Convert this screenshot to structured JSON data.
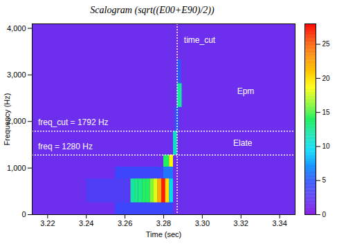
{
  "chart_data": {
    "type": "heatmap",
    "title": "Scalogram (sqrt((E00+E90)/2))",
    "x_label": "Time (sec)",
    "y_label": "Frequency (Hz)",
    "xlim": [
      3.212,
      3.348
    ],
    "xticks": [
      3.22,
      3.24,
      3.26,
      3.28,
      3.3,
      3.32,
      3.34
    ],
    "ylim": [
      0,
      4096
    ],
    "yticks": [
      0,
      1000,
      2000,
      3000,
      4000
    ],
    "cells": [
      {
        "time": [
          3.212,
          3.348
        ],
        "freq": [
          0,
          4096
        ],
        "value": 1.5
      },
      {
        "time": [
          3.24,
          3.262
        ],
        "freq": [
          256,
          768
        ],
        "value": 3
      },
      {
        "time": [
          3.255,
          3.285
        ],
        "freq": [
          0,
          256
        ],
        "value": 4
      },
      {
        "time": [
          3.255,
          3.28
        ],
        "freq": [
          768,
          1024
        ],
        "value": 4
      },
      {
        "time": [
          3.28,
          3.285
        ],
        "freq": [
          768,
          1024
        ],
        "value": 6
      },
      {
        "time": [
          3.263,
          3.265
        ],
        "freq": [
          256,
          768
        ],
        "value": 12
      },
      {
        "time": [
          3.265,
          3.267
        ],
        "freq": [
          256,
          768
        ],
        "value": 13
      },
      {
        "time": [
          3.267,
          3.269
        ],
        "freq": [
          256,
          768
        ],
        "value": 13
      },
      {
        "time": [
          3.269,
          3.271
        ],
        "freq": [
          256,
          768
        ],
        "value": 14
      },
      {
        "time": [
          3.271,
          3.273
        ],
        "freq": [
          256,
          768
        ],
        "value": 14
      },
      {
        "time": [
          3.273,
          3.275
        ],
        "freq": [
          256,
          768
        ],
        "value": 16
      },
      {
        "time": [
          3.275,
          3.277
        ],
        "freq": [
          256,
          768
        ],
        "value": 18
      },
      {
        "time": [
          3.277,
          3.279
        ],
        "freq": [
          256,
          768
        ],
        "value": 22
      },
      {
        "time": [
          3.279,
          3.281
        ],
        "freq": [
          256,
          768
        ],
        "value": 27
      },
      {
        "time": [
          3.281,
          3.283
        ],
        "freq": [
          256,
          768
        ],
        "value": 20
      },
      {
        "time": [
          3.283,
          3.285
        ],
        "freq": [
          256,
          768
        ],
        "value": 10
      },
      {
        "time": [
          3.28,
          3.283
        ],
        "freq": [
          1024,
          1280
        ],
        "value": 14
      },
      {
        "time": [
          3.283,
          3.285
        ],
        "freq": [
          1024,
          1280
        ],
        "value": 19
      },
      {
        "time": [
          3.285,
          3.287
        ],
        "freq": [
          1280,
          1792
        ],
        "value": 11
      },
      {
        "time": [
          3.286,
          3.288
        ],
        "freq": [
          1792,
          2304
        ],
        "value": 5
      },
      {
        "time": [
          3.287,
          3.2895
        ],
        "freq": [
          2304,
          2816
        ],
        "value": 12
      },
      {
        "time": [
          3.287,
          3.289
        ],
        "freq": [
          2816,
          3328
        ],
        "value": 5
      }
    ],
    "colorbar": {
      "range": [
        0,
        28
      ],
      "ticks": [
        0,
        5,
        10,
        15,
        20,
        25
      ]
    },
    "vlines": [
      3.287
    ],
    "hlines": [
      1280,
      1792
    ],
    "annotations": [
      {
        "text": "time_cut",
        "x": 3.2905,
        "y": 3750
      },
      {
        "text": "Epm",
        "x": 3.318,
        "y": 2650
      },
      {
        "text": "freq_cut = 1792 Hz",
        "x": 3.215,
        "y": 1980
      },
      {
        "text": "freq = 1280 Hz",
        "x": 3.215,
        "y": 1460
      },
      {
        "text": "Elate",
        "x": 3.316,
        "y": 1530
      }
    ]
  }
}
